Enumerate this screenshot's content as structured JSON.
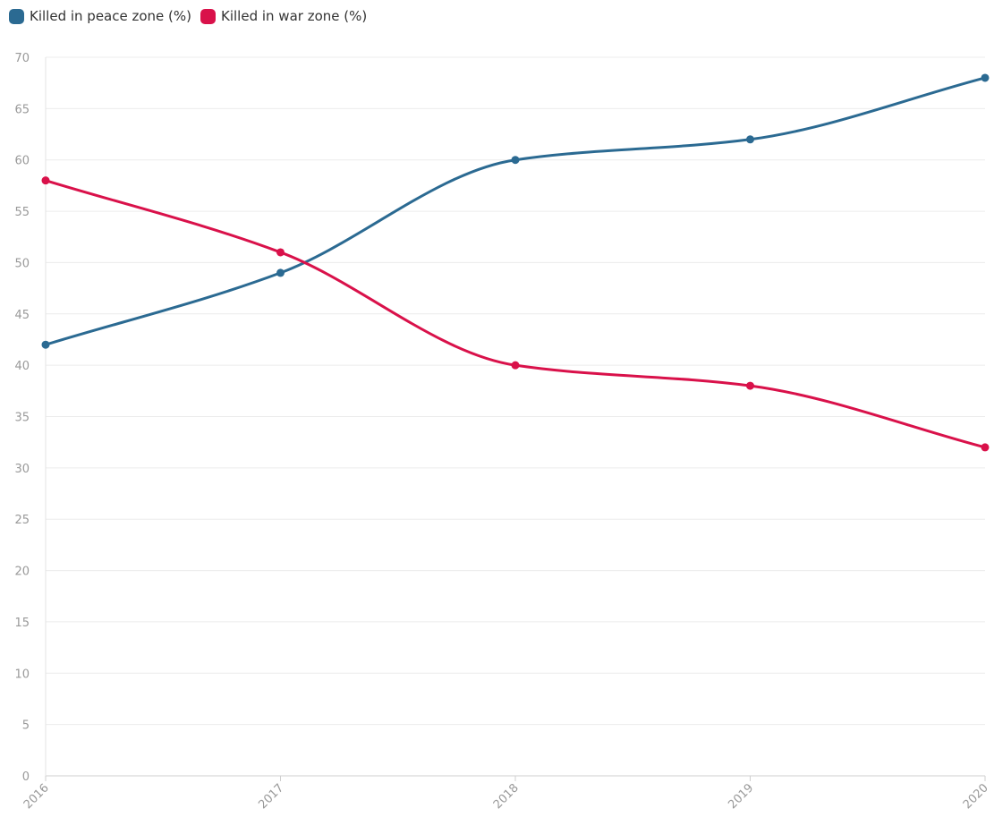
{
  "legend": {
    "position": "top-left",
    "items": [
      {
        "label": "Killed in peace zone (%)",
        "color": "#2b6a92"
      },
      {
        "label": "Killed in war zone (%)",
        "color": "#d9114a"
      }
    ]
  },
  "chart_data": {
    "type": "line",
    "x": [
      "2016",
      "2017",
      "2018",
      "2019",
      "2020"
    ],
    "series": [
      {
        "name": "Killed in peace zone (%)",
        "values": [
          42,
          49,
          60,
          62,
          68
        ],
        "color": "#2b6a92"
      },
      {
        "name": "Killed in war zone (%)",
        "values": [
          58,
          51,
          40,
          38,
          32
        ],
        "color": "#d9114a"
      }
    ],
    "ylim": [
      0,
      70
    ],
    "yticks": [
      0,
      5,
      10,
      15,
      20,
      25,
      30,
      35,
      40,
      45,
      50,
      55,
      60,
      65,
      70
    ],
    "grid": true,
    "smooth": true,
    "legend_placement": "top-left"
  }
}
